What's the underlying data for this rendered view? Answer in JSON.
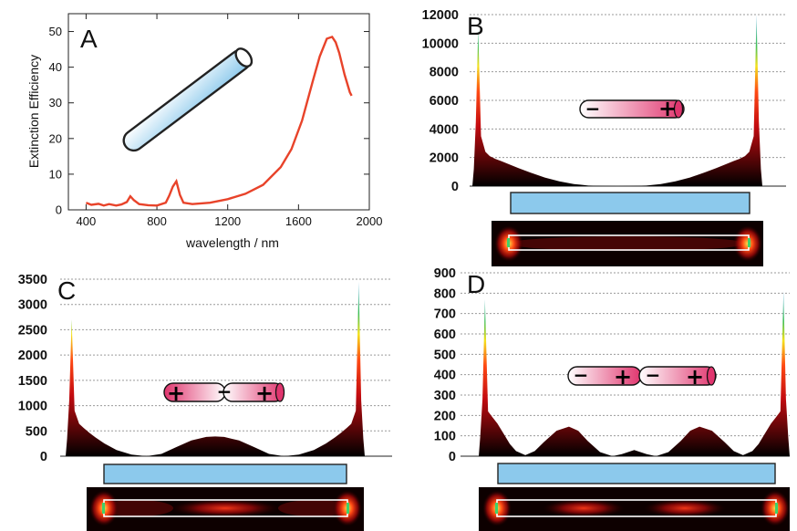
{
  "colors": {
    "curve": "#e8432a",
    "rod_fill": "#8cc9ec",
    "charge_pink": "#e0356e",
    "frame": "#222222",
    "gridline": "#9a9a9a"
  },
  "panels": {
    "A": {
      "letter": "A"
    },
    "B": {
      "letter": "B",
      "charges": [
        "−",
        "+"
      ]
    },
    "C": {
      "letter": "C",
      "charges": [
        "+",
        "−",
        "+"
      ]
    },
    "D": {
      "letter": "D",
      "charges": [
        "−",
        "+",
        "−",
        "+"
      ]
    }
  },
  "chart_data": [
    {
      "id": "A",
      "type": "line",
      "xlabel": "wavelength / nm",
      "ylabel": "Extinction Efficiency",
      "xlim": [
        300,
        2000
      ],
      "ylim": [
        0,
        55
      ],
      "xticks": [
        400,
        800,
        1200,
        1600,
        2000
      ],
      "yticks": [
        0,
        10,
        20,
        30,
        40,
        50
      ],
      "grid": false,
      "series": [
        {
          "x": [
            400,
            430,
            470,
            500,
            530,
            570,
            600,
            630,
            650,
            670,
            700,
            750,
            800,
            850,
            870,
            890,
            910,
            930,
            950,
            1000,
            1100,
            1200,
            1300,
            1400,
            1500,
            1560,
            1620,
            1680,
            1720,
            1760,
            1790,
            1810,
            1830,
            1860,
            1890,
            1900
          ],
          "y": [
            2.0,
            1.4,
            1.7,
            1.2,
            1.6,
            1.2,
            1.5,
            2.2,
            3.8,
            2.7,
            1.6,
            1.3,
            1.2,
            2.0,
            4.0,
            6.5,
            8.0,
            4.2,
            2.0,
            1.6,
            2.0,
            3.0,
            4.5,
            7.0,
            12.0,
            17.0,
            25.0,
            36.0,
            43.0,
            48.0,
            48.5,
            47.0,
            44.0,
            38.0,
            33.0,
            32.0
          ]
        }
      ]
    },
    {
      "id": "B",
      "type": "area",
      "ylim": [
        0,
        12000
      ],
      "yticks": [
        0,
        2000,
        4000,
        6000,
        8000,
        10000,
        12000
      ],
      "grid": true,
      "profile": {
        "x": [
          0.0,
          0.005,
          0.012,
          0.02,
          0.03,
          0.045,
          0.06,
          0.08,
          0.1,
          0.13,
          0.16,
          0.2,
          0.25,
          0.3,
          0.35,
          0.4,
          0.45,
          0.5,
          0.55,
          0.6,
          0.65,
          0.7,
          0.75,
          0.8,
          0.84,
          0.87,
          0.9,
          0.92,
          0.94,
          0.955,
          0.97,
          0.98,
          0.988,
          0.995,
          1.0
        ],
        "y": [
          0,
          1200,
          4500,
          11000,
          3500,
          2400,
          2100,
          1900,
          1750,
          1500,
          1250,
          950,
          600,
          330,
          150,
          40,
          10,
          0,
          10,
          40,
          150,
          330,
          600,
          950,
          1250,
          1500,
          1750,
          1900,
          2100,
          2400,
          3500,
          12000,
          4500,
          1200,
          0
        ]
      }
    },
    {
      "id": "C",
      "type": "area",
      "ylim": [
        0,
        3500
      ],
      "yticks": [
        0,
        500,
        1000,
        1500,
        2000,
        2500,
        3000,
        3500
      ],
      "grid": true,
      "profile": {
        "x": [
          0.0,
          0.005,
          0.012,
          0.02,
          0.03,
          0.045,
          0.06,
          0.08,
          0.1,
          0.13,
          0.17,
          0.22,
          0.27,
          0.32,
          0.37,
          0.42,
          0.47,
          0.5,
          0.53,
          0.58,
          0.63,
          0.68,
          0.73,
          0.78,
          0.83,
          0.87,
          0.9,
          0.92,
          0.94,
          0.955,
          0.97,
          0.98,
          0.988,
          0.995,
          1.0
        ],
        "y": [
          0,
          350,
          1100,
          2700,
          900,
          640,
          560,
          460,
          370,
          250,
          120,
          30,
          0,
          45,
          180,
          310,
          380,
          390,
          380,
          310,
          180,
          45,
          0,
          30,
          120,
          250,
          370,
          460,
          560,
          640,
          900,
          3450,
          1100,
          350,
          0
        ]
      }
    },
    {
      "id": "D",
      "type": "area",
      "ylim": [
        0,
        900
      ],
      "yticks": [
        0,
        100,
        200,
        300,
        400,
        500,
        600,
        700,
        800,
        900
      ],
      "grid": true,
      "profile": {
        "x": [
          0.0,
          0.005,
          0.012,
          0.02,
          0.03,
          0.045,
          0.06,
          0.08,
          0.1,
          0.12,
          0.15,
          0.18,
          0.21,
          0.25,
          0.29,
          0.32,
          0.35,
          0.39,
          0.43,
          0.46,
          0.5,
          0.54,
          0.57,
          0.61,
          0.65,
          0.68,
          0.71,
          0.75,
          0.79,
          0.82,
          0.85,
          0.88,
          0.9,
          0.92,
          0.94,
          0.955,
          0.97,
          0.98,
          0.988,
          0.995,
          1.0
        ],
        "y": [
          0,
          100,
          280,
          770,
          220,
          190,
          160,
          110,
          60,
          25,
          5,
          25,
          70,
          125,
          145,
          125,
          75,
          20,
          0,
          10,
          30,
          10,
          0,
          20,
          75,
          125,
          145,
          125,
          70,
          25,
          5,
          25,
          60,
          110,
          160,
          190,
          220,
          810,
          280,
          100,
          0
        ]
      }
    }
  ]
}
